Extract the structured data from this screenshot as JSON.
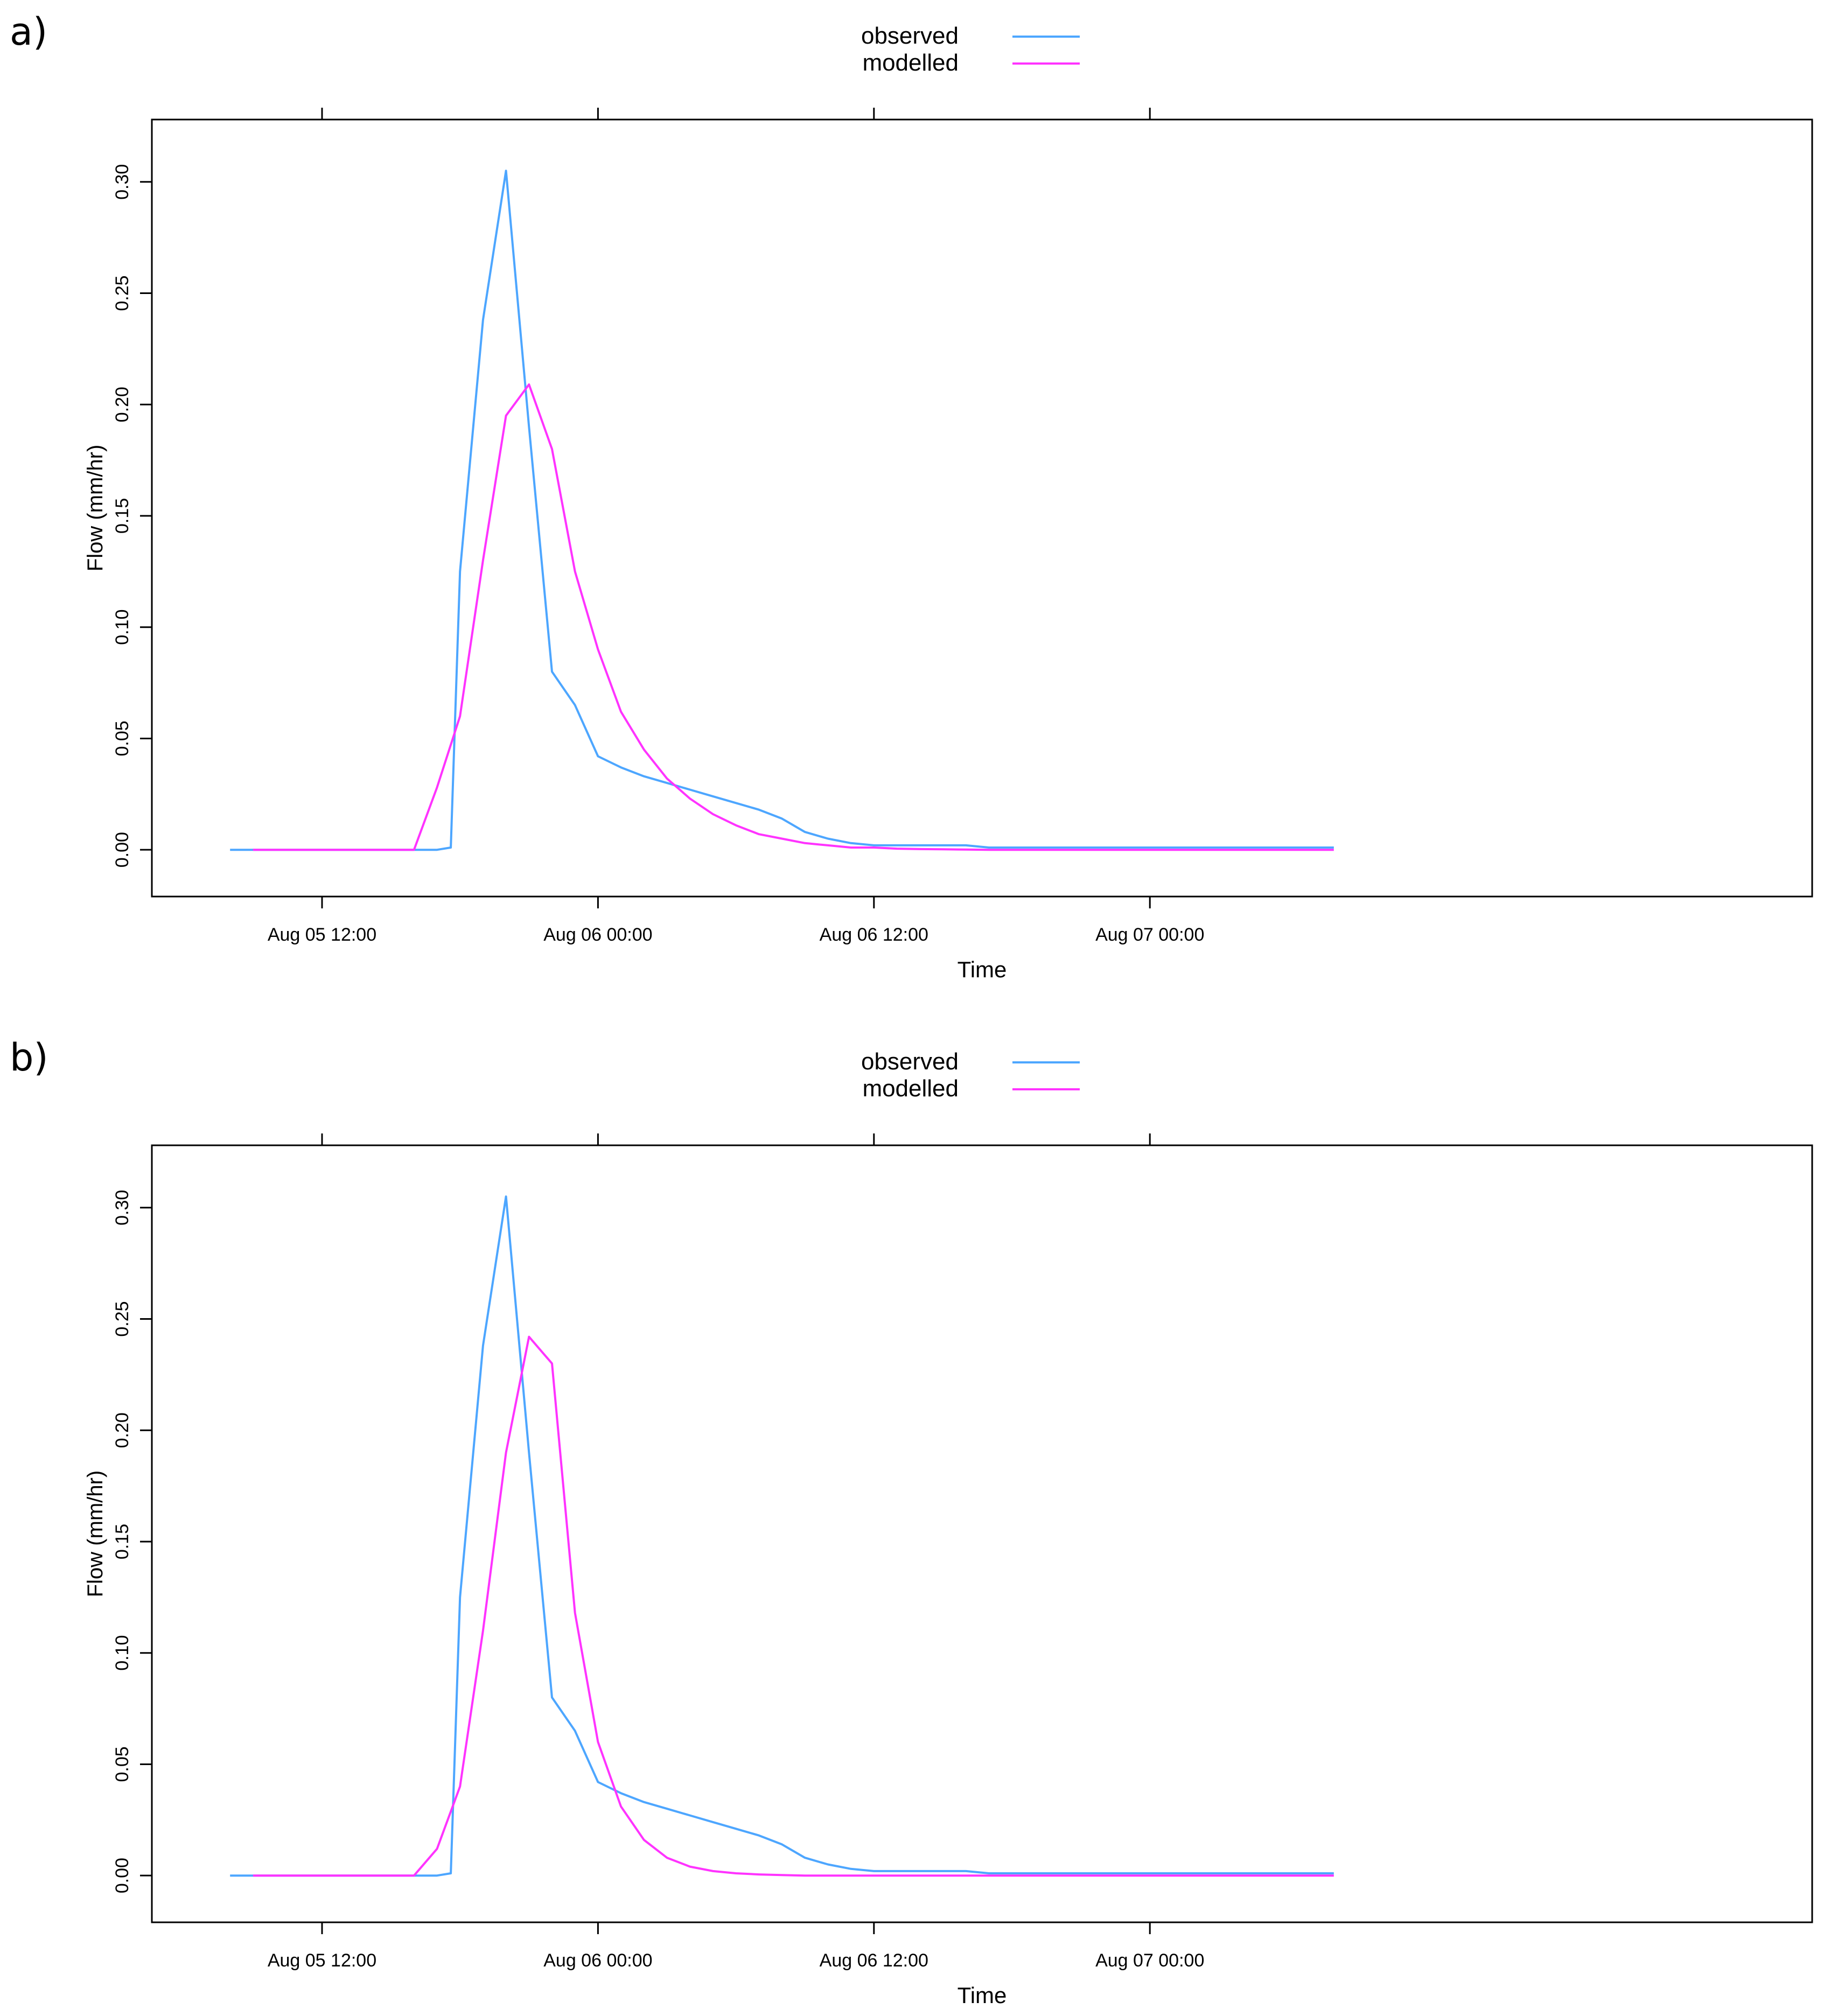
{
  "panels": [
    {
      "label": "a)"
    },
    {
      "label": "b)"
    }
  ],
  "colors": {
    "observed": "#4DA6FF",
    "modelled": "#FF33FF"
  },
  "chart_data": [
    {
      "type": "line",
      "xlabel": "Time",
      "ylabel": "Flow (mm/hr)",
      "x_unit": "hours since Aug 05 00:00",
      "xlim": [
        4.6,
        76.8
      ],
      "ylim": [
        -0.021,
        0.328
      ],
      "xticks": [
        {
          "value": 12,
          "label": "Aug 05 12:00"
        },
        {
          "value": 24,
          "label": "Aug 06 00:00"
        },
        {
          "value": 36,
          "label": "Aug 06 12:00"
        },
        {
          "value": 48,
          "label": "Aug 07 00:00"
        }
      ],
      "yticks": [
        0.0,
        0.05,
        0.1,
        0.15,
        0.2,
        0.25,
        0.3
      ],
      "ytick_labels": [
        "0.00",
        "0.05",
        "0.10",
        "0.15",
        "0.20",
        "0.25",
        "0.30"
      ],
      "legend": {
        "position": "top-center",
        "entries": [
          "observed",
          "modelled"
        ]
      },
      "series": [
        {
          "name": "observed",
          "x": [
            8,
            9,
            10,
            11,
            12,
            13,
            14,
            15,
            16,
            17,
            17.6,
            18,
            19,
            20,
            21,
            22,
            23,
            24,
            25,
            26,
            27,
            28,
            29,
            30,
            31,
            32,
            33,
            34,
            35,
            36,
            37,
            38,
            39,
            40,
            41,
            42,
            43,
            44,
            45,
            46,
            47,
            48,
            49,
            50,
            51,
            52,
            53,
            54,
            55,
            56
          ],
          "y": [
            0,
            0,
            0,
            0,
            0,
            0,
            0,
            0,
            0,
            0,
            0.001,
            0.125,
            0.238,
            0.305,
            0.19,
            0.08,
            0.065,
            0.042,
            0.037,
            0.033,
            0.03,
            0.027,
            0.024,
            0.021,
            0.018,
            0.014,
            0.008,
            0.005,
            0.003,
            0.002,
            0.002,
            0.002,
            0.002,
            0.002,
            0.001,
            0.001,
            0.001,
            0.001,
            0.001,
            0.001,
            0.001,
            0.001,
            0.001,
            0.001,
            0.001,
            0.001,
            0.001,
            0.001,
            0.001,
            0.001
          ]
        },
        {
          "name": "modelled",
          "x": [
            9,
            10,
            11,
            12,
            13,
            14,
            15,
            16,
            17,
            18,
            19,
            20,
            21,
            22,
            23,
            24,
            25,
            26,
            27,
            28,
            29,
            30,
            31,
            32,
            33,
            34,
            35,
            36,
            37,
            38,
            39,
            40,
            41,
            42,
            43,
            44,
            45,
            46,
            47,
            48,
            49,
            50,
            51,
            52,
            53,
            54,
            55,
            56
          ],
          "y": [
            0,
            0,
            0,
            0,
            0,
            0,
            0,
            0,
            0.028,
            0.06,
            0.13,
            0.195,
            0.209,
            0.18,
            0.125,
            0.09,
            0.062,
            0.045,
            0.032,
            0.023,
            0.016,
            0.011,
            0.007,
            0.005,
            0.003,
            0.002,
            0.001,
            0.001,
            0.0005,
            0.0003,
            0.0002,
            0.0001,
            0,
            0,
            0,
            0,
            0,
            0,
            0,
            0,
            0,
            0,
            0,
            0,
            0,
            0,
            0,
            0
          ]
        }
      ]
    },
    {
      "type": "line",
      "xlabel": "Time",
      "ylabel": "Flow (mm/hr)",
      "x_unit": "hours since Aug 05 00:00",
      "xlim": [
        4.6,
        76.8
      ],
      "ylim": [
        -0.021,
        0.328
      ],
      "xticks": [
        {
          "value": 12,
          "label": "Aug 05 12:00"
        },
        {
          "value": 24,
          "label": "Aug 06 00:00"
        },
        {
          "value": 36,
          "label": "Aug 06 12:00"
        },
        {
          "value": 48,
          "label": "Aug 07 00:00"
        }
      ],
      "yticks": [
        0.0,
        0.05,
        0.1,
        0.15,
        0.2,
        0.25,
        0.3
      ],
      "ytick_labels": [
        "0.00",
        "0.05",
        "0.10",
        "0.15",
        "0.20",
        "0.25",
        "0.30"
      ],
      "legend": {
        "position": "top-center",
        "entries": [
          "observed",
          "modelled"
        ]
      },
      "series": [
        {
          "name": "observed",
          "x": [
            8,
            9,
            10,
            11,
            12,
            13,
            14,
            15,
            16,
            17,
            17.6,
            18,
            19,
            20,
            21,
            22,
            23,
            24,
            25,
            26,
            27,
            28,
            29,
            30,
            31,
            32,
            33,
            34,
            35,
            36,
            37,
            38,
            39,
            40,
            41,
            42,
            43,
            44,
            45,
            46,
            47,
            48,
            49,
            50,
            51,
            52,
            53,
            54,
            55,
            56
          ],
          "y": [
            0,
            0,
            0,
            0,
            0,
            0,
            0,
            0,
            0,
            0,
            0.001,
            0.125,
            0.238,
            0.305,
            0.19,
            0.08,
            0.065,
            0.042,
            0.037,
            0.033,
            0.03,
            0.027,
            0.024,
            0.021,
            0.018,
            0.014,
            0.008,
            0.005,
            0.003,
            0.002,
            0.002,
            0.002,
            0.002,
            0.002,
            0.001,
            0.001,
            0.001,
            0.001,
            0.001,
            0.001,
            0.001,
            0.001,
            0.001,
            0.001,
            0.001,
            0.001,
            0.001,
            0.001,
            0.001,
            0.001
          ]
        },
        {
          "name": "modelled",
          "x": [
            9,
            10,
            11,
            12,
            13,
            14,
            15,
            16,
            17,
            18,
            19,
            20,
            21,
            22,
            23,
            24,
            25,
            26,
            27,
            28,
            29,
            30,
            31,
            32,
            33,
            34,
            35,
            36,
            37,
            38,
            39,
            40,
            41,
            42,
            43,
            44,
            45,
            46,
            47,
            48,
            49,
            50,
            51,
            52,
            53,
            54,
            55,
            56
          ],
          "y": [
            0,
            0,
            0,
            0,
            0,
            0,
            0,
            0,
            0.012,
            0.04,
            0.11,
            0.19,
            0.242,
            0.23,
            0.118,
            0.06,
            0.031,
            0.016,
            0.008,
            0.004,
            0.002,
            0.001,
            0.0005,
            0.0002,
            0,
            0,
            0,
            0,
            0,
            0,
            0,
            0,
            0,
            0,
            0,
            0,
            0,
            0,
            0,
            0,
            0,
            0,
            0,
            0,
            0,
            0,
            0,
            0
          ]
        }
      ]
    }
  ]
}
